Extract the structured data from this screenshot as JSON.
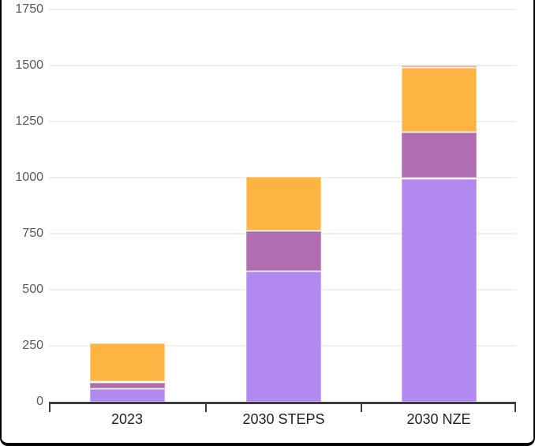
{
  "frame": {
    "border_color": "#000000",
    "background_color": "#ffffff"
  },
  "axis": {
    "line_color": "#3d3d3d",
    "gridline_color": "#efefef",
    "y_label_color": "#595959",
    "x_label_color": "#1f1f1f"
  },
  "chart_data": {
    "type": "bar",
    "stacked": true,
    "title": "",
    "xlabel": "",
    "ylabel": "",
    "legend": "none",
    "grid": "horizontal",
    "ylim": [
      0,
      1750
    ],
    "yticks": [
      0,
      250,
      500,
      750,
      1000,
      1250,
      1500,
      1750
    ],
    "categories": [
      "2023",
      "2030 STEPS",
      "2030 NZE"
    ],
    "series": [
      {
        "name": "segment-light-purple",
        "color": "#b289f0",
        "border_color": "#c9aef4",
        "values": [
          60,
          585,
          1000
        ]
      },
      {
        "name": "segment-magenta",
        "color": "#b16db2",
        "border_color": "#c795c8",
        "values": [
          30,
          180,
          205
        ]
      },
      {
        "name": "segment-orange",
        "color": "#fdb442",
        "border_color": "#fdd28d",
        "values": [
          175,
          245,
          290
        ]
      },
      {
        "name": "segment-coral",
        "color": "#ef8261",
        "border_color": "#f7b3a4",
        "values": [
          0,
          0,
          12
        ]
      }
    ],
    "stack_totals": [
      265,
      1010,
      1507
    ]
  }
}
